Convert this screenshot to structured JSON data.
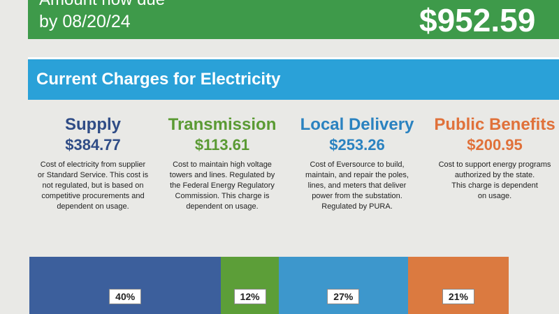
{
  "header": {
    "label": "Amount now due",
    "date": "by 08/20/24",
    "amount": "$952.59"
  },
  "section": {
    "title": "Current Charges for Electricity"
  },
  "charges": [
    {
      "name": "Supply",
      "amount": "$384.77",
      "color": "#2f4c86",
      "description": [
        "Cost of electricity from supplier",
        "or Standard Service. This cost is",
        "not regulated, but is based on",
        "competitive procurements and",
        "dependent on usage."
      ]
    },
    {
      "name": "Transmission",
      "amount": "$113.61",
      "color": "#5a9a33",
      "description": [
        "Cost to maintain high voltage",
        "towers and lines. Regulated by",
        "the Federal Energy Regulatory",
        "Commission. This charge is",
        "dependent on usage."
      ]
    },
    {
      "name": "Local Delivery",
      "amount": "$253.26",
      "color": "#2a82c0",
      "description": [
        "Cost of Eversource to build,",
        "maintain, and repair the poles,",
        "lines, and meters that deliver",
        "power from the substation.",
        "Regulated by PURA."
      ]
    },
    {
      "name": "Public Benefits",
      "amount": "$200.95",
      "color": "#e0713a",
      "description": [
        "Cost to support energy programs",
        "authorized by the state.",
        "This charge is dependent",
        "on usage."
      ]
    }
  ],
  "bar": {
    "segments": [
      {
        "value": 40,
        "label": "40%",
        "color": "#3c5f9c"
      },
      {
        "value": 12,
        "label": "12%",
        "color": "#5c9e38"
      },
      {
        "value": 27,
        "label": "27%",
        "color": "#3d97cc"
      },
      {
        "value": 21,
        "label": "21%",
        "color": "#db7a40"
      }
    ]
  }
}
